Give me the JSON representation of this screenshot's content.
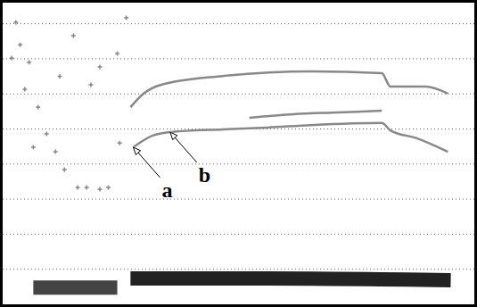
{
  "chart_data": {
    "type": "line",
    "xlim": [
      0,
      100
    ],
    "ylim": [
      0,
      8.6
    ],
    "yticks": [
      1,
      2,
      3,
      4,
      5,
      6,
      7,
      8
    ],
    "grid": true,
    "tick_labels": false,
    "series": [
      {
        "type": "line",
        "color": "#222222",
        "line_style": "band",
        "x": [
          27.1,
          56.1,
          95
        ],
        "values": [
          0.74,
          0.74,
          0.69
        ]
      },
      {
        "type": "line",
        "color": "#444444",
        "line_style": "band",
        "x": [
          6.5,
          24.3
        ],
        "values": [
          0.48,
          0.48
        ]
      },
      {
        "type": "line",
        "color": "#888888",
        "line_style": "solid",
        "x": [
          27.7,
          31.8,
          35.5,
          46.7,
          56.1,
          65.4,
          80.4,
          82.2,
          87.9,
          94.4
        ],
        "values": [
          4.48,
          4.81,
          4.91,
          4.99,
          5.04,
          5.11,
          5.17,
          4.96,
          4.73,
          4.35
        ]
      },
      {
        "type": "line",
        "color": "#888888",
        "line_style": "solid",
        "x": [
          52.3,
          61.7,
          71,
          80.4
        ],
        "values": [
          5.32,
          5.42,
          5.47,
          5.52
        ]
      },
      {
        "type": "line",
        "color": "#888888",
        "line_style": "solid",
        "x": [
          27.1,
          29.9,
          33.6,
          46.7,
          65.4,
          80.4,
          82.2,
          89.7,
          94.4
        ],
        "values": [
          5.62,
          6.01,
          6.26,
          6.51,
          6.64,
          6.59,
          6.21,
          6.21,
          6.01
        ]
      },
      {
        "type": "scatter",
        "color": "#888888",
        "marker": "plus",
        "x": [
          2.8,
          3.7,
          5.6,
          7.5,
          9.3,
          11.2,
          13.1,
          15.9,
          17.8,
          20.6,
          22.4,
          24.3,
          26.2,
          18.7,
          20.6,
          15,
          4.7,
          6.5,
          1.9,
          12.1,
          24.8
        ],
        "values": [
          8.04,
          7.4,
          6.9,
          5.62,
          4.86,
          4.35,
          3.84,
          3.33,
          3.33,
          3.28,
          3.33,
          7.15,
          8.17,
          6.26,
          6.77,
          7.66,
          6.13,
          4.48,
          7.02,
          6.5,
          4.6
        ]
      }
    ],
    "annotations": [
      {
        "text": "a",
        "point": [
          27.7,
          4.48
        ]
      },
      {
        "text": "b",
        "point": [
          35.5,
          4.91
        ]
      }
    ]
  }
}
